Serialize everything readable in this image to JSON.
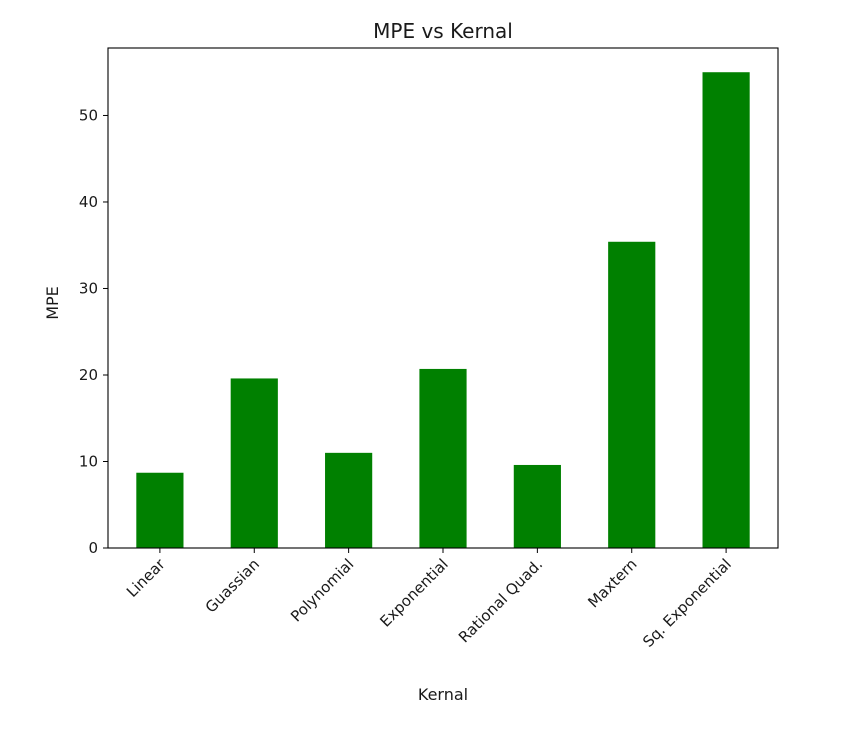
{
  "chart_data": {
    "type": "bar",
    "title": "MPE vs Kernal",
    "xlabel": "Kernal",
    "ylabel": "MPE",
    "categories": [
      "Linear",
      "Guassian",
      "Polynomial",
      "Exponential",
      "Rational Quad.",
      "Maxtern",
      "Sq. Exponential"
    ],
    "values": [
      8.7,
      19.6,
      11.0,
      20.7,
      9.6,
      35.4,
      55.0
    ],
    "ylim": [
      0,
      57.8
    ],
    "yticks": [
      0,
      10,
      20,
      30,
      40,
      50
    ],
    "bar_color": "#008000",
    "grid": false,
    "legend": "none"
  }
}
